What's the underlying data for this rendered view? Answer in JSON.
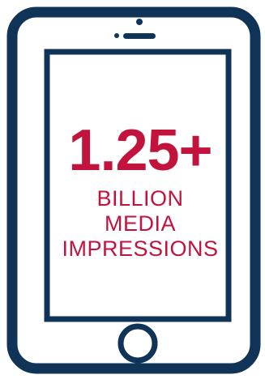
{
  "colors": {
    "device_outline": "#0F3458",
    "accent": "#C1133C",
    "background": "#FFFFFF"
  },
  "icons": {
    "device": "smartphone-icon",
    "speaker": "speaker-icon",
    "camera": "camera-dot-icon",
    "home_button": "home-button-icon"
  },
  "stat": {
    "value": "1.25+",
    "label_lines": [
      "BILLION",
      "MEDIA",
      "IMPRESSIONS"
    ]
  }
}
